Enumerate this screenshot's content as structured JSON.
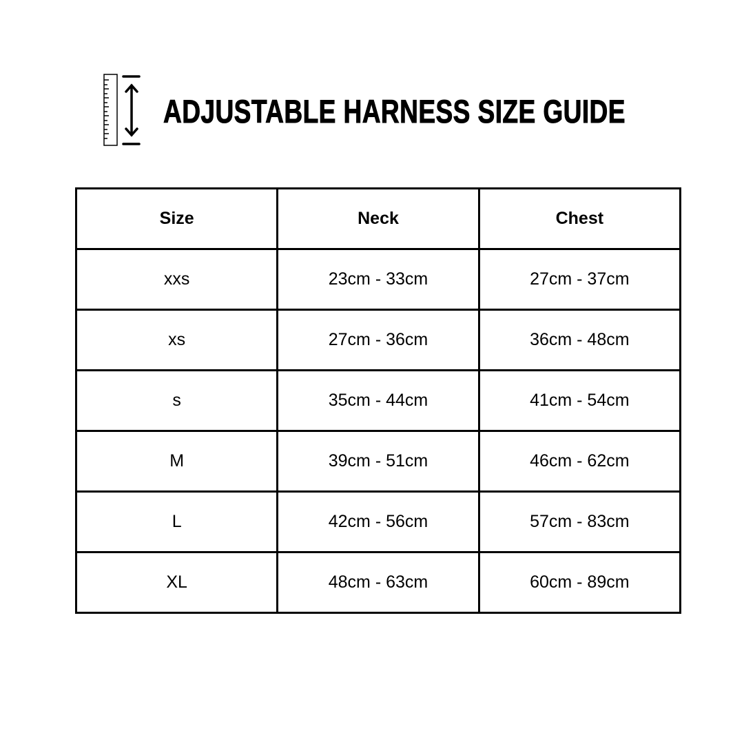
{
  "header": {
    "title": "ADJUSTABLE HARNESS SIZE GUIDE",
    "icon": "ruler-measure-icon"
  },
  "table": {
    "columns": [
      "Size",
      "Neck",
      "Chest"
    ],
    "rows": [
      [
        "xxs",
        "23cm - 33cm",
        "27cm - 37cm"
      ],
      [
        "xs",
        "27cm - 36cm",
        "36cm - 48cm"
      ],
      [
        "s",
        "35cm - 44cm",
        "41cm - 54cm"
      ],
      [
        "M",
        "39cm - 51cm",
        "46cm - 62cm"
      ],
      [
        "L",
        "42cm - 56cm",
        "57cm - 83cm"
      ],
      [
        "XL",
        "48cm - 63cm",
        "60cm - 89cm"
      ]
    ]
  }
}
